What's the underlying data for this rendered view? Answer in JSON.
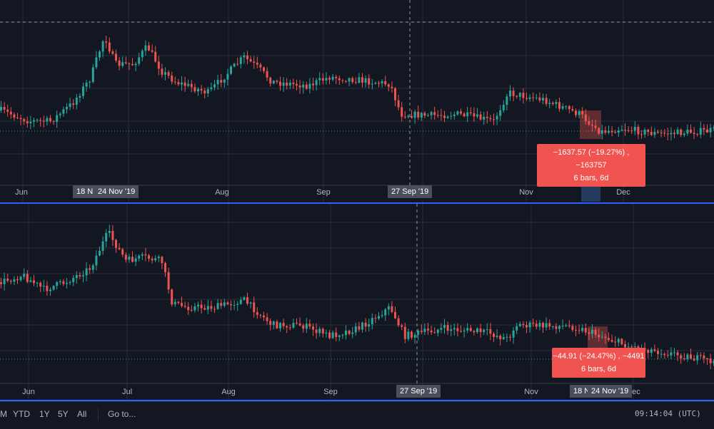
{
  "top_pane": {
    "months": [
      "Jun",
      "Aug",
      "Sep",
      "Nov",
      "Dec"
    ],
    "tag_left_partial": "18 N",
    "tag_left": "24 Nov '19",
    "tag_cross": "27 Sep '19",
    "measure_line1": "−1637.57 (−19.27%) , −163757",
    "measure_line2": "6 bars, 6d"
  },
  "bottom_pane": {
    "months": [
      "Jun",
      "Jul",
      "Aug",
      "Sep",
      "Nov",
      "Dec"
    ],
    "tag_cross": "27 Sep '19",
    "tag_right_partial": "18 N",
    "tag_right": "24 Nov '19",
    "measure_line1": "−44.91 (−24.47%) , −4491",
    "measure_line2": "6 bars, 6d"
  },
  "bottom_bar": {
    "ranges": [
      "M",
      "YTD",
      "1Y",
      "5Y",
      "All"
    ],
    "goto": "Go to...",
    "clock": "09:14:04 (UTC)"
  },
  "colors": {
    "up": "#26a69a",
    "down": "#ef5350",
    "bg": "#131722",
    "grid": "#2a2e39",
    "accent": "#2962ff"
  }
}
